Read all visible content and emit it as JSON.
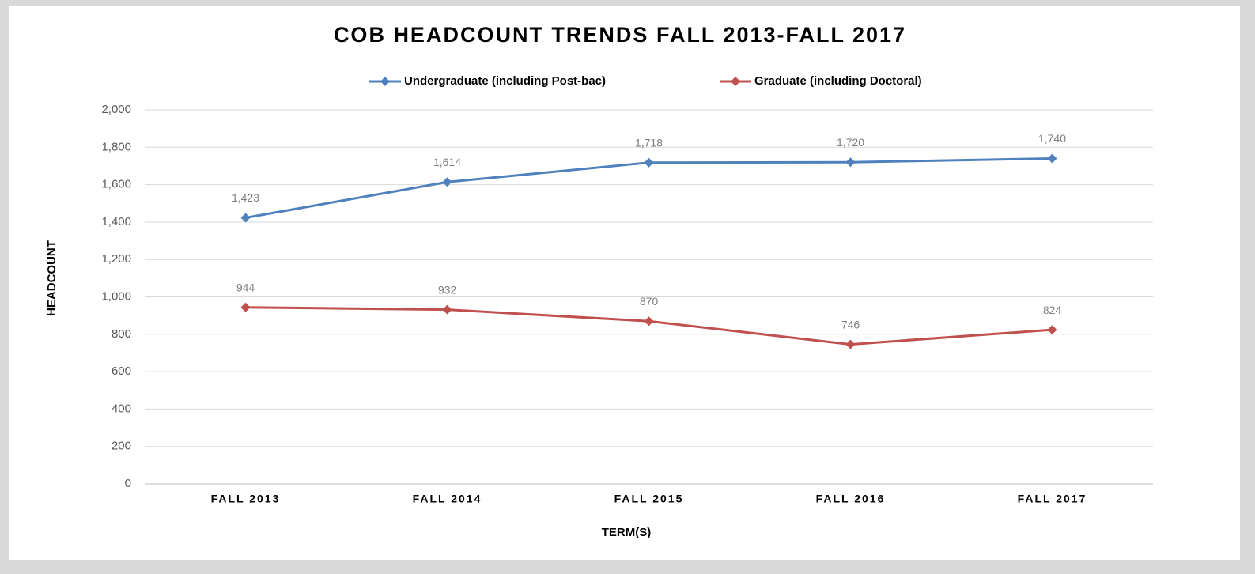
{
  "chart_data": {
    "type": "line",
    "title": "COB HEADCOUNT TRENDS FALL 2013-FALL 2017",
    "x_label": "TERM(S)",
    "y_label": "HEADCOUNT",
    "categories": [
      "FALL 2013",
      "FALL 2014",
      "FALL 2015",
      "FALL 2016",
      "FALL 2017"
    ],
    "series": [
      {
        "name": "Undergraduate (including Post-bac)",
        "color": "#4f81bd",
        "values": [
          1423,
          1614,
          1718,
          1720,
          1740
        ],
        "value_labels": [
          "1,423",
          "1,614",
          "1,718",
          "1,720",
          "1,740"
        ]
      },
      {
        "name": "Graduate (including Doctoral)",
        "color": "#c0504d",
        "values": [
          944,
          932,
          870,
          746,
          824
        ]
      }
    ],
    "ylim": [
      0,
      2000
    ],
    "yticks": [
      0,
      200,
      400,
      600,
      800,
      {
        "value": 1000,
        "label": "1,000"
      },
      {
        "value": 1200,
        "label": "1,200"
      },
      {
        "value": 1400,
        "label": "1,400"
      },
      {
        "value": 1600,
        "label": "1,600"
      },
      {
        "value": 1800,
        "label": "1,800"
      },
      {
        "value": 2000,
        "label": "2,000"
      }
    ],
    "grid": true,
    "legend": "top"
  }
}
